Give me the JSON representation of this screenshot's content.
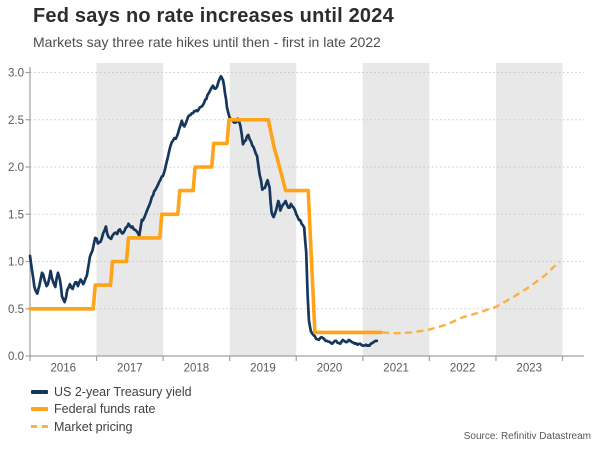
{
  "header": {
    "title": "Fed says no rate increases until 2024",
    "subtitle": "Markets say three rate hikes until then - first in late 2022"
  },
  "source": "Source: Refinitiv Datastream",
  "colors": {
    "treasury_navy": "#16365C",
    "fed_funds_orange": "#FFA319",
    "market_pricing_orange": "#FBB040",
    "year_band_gray": "#E8E8E8",
    "gridline_gray": "#C9C9C9",
    "axis_gray": "#A0A0A0",
    "tick_label_gray": "#595959"
  },
  "legend": [
    {
      "label": "US 2-year Treasury yield",
      "style": "solid",
      "color": "#16365C"
    },
    {
      "label": "Federal funds rate",
      "style": "solid",
      "color": "#FFA319"
    },
    {
      "label": "Market pricing",
      "style": "dashed",
      "color": "#FBB040"
    }
  ],
  "chart_data": {
    "type": "line",
    "title": "Fed says no rate increases until 2024",
    "subtitle": "Markets say three rate hikes until then - first in late 2022",
    "xlabel": "",
    "ylabel": "",
    "x_axis": {
      "range": [
        2016,
        2024.32
      ],
      "year_labels": [
        "2016",
        "2017",
        "2018",
        "2019",
        "2020",
        "2021",
        "2022",
        "2023"
      ],
      "boundary_tick_years": [
        2016,
        2017,
        2018,
        2019,
        2020,
        2021,
        2022,
        2023,
        2024
      ]
    },
    "y_axis": {
      "range": [
        0.0,
        3.0
      ],
      "ticks": [
        0.0,
        0.5,
        1.0,
        1.5,
        2.0,
        2.5,
        3.0
      ],
      "grid": "dotted"
    },
    "shaded_year_bands": [
      2017,
      2019,
      2021,
      2023
    ],
    "legend_position": "bottom-left",
    "series": [
      {
        "name": "US 2-year Treasury yield",
        "style": "solid",
        "color": "#16365C",
        "width": 2.7,
        "daily_noise": true,
        "points": [
          [
            2016.0,
            1.06
          ],
          [
            2016.02,
            0.96
          ],
          [
            2016.05,
            0.82
          ],
          [
            2016.08,
            0.7
          ],
          [
            2016.11,
            0.66
          ],
          [
            2016.14,
            0.74
          ],
          [
            2016.18,
            0.88
          ],
          [
            2016.22,
            0.8
          ],
          [
            2016.25,
            0.74
          ],
          [
            2016.28,
            0.79
          ],
          [
            2016.31,
            0.9
          ],
          [
            2016.35,
            0.78
          ],
          [
            2016.38,
            0.73
          ],
          [
            2016.42,
            0.88
          ],
          [
            2016.45,
            0.8
          ],
          [
            2016.48,
            0.63
          ],
          [
            2016.52,
            0.57
          ],
          [
            2016.56,
            0.7
          ],
          [
            2016.6,
            0.76
          ],
          [
            2016.64,
            0.71
          ],
          [
            2016.68,
            0.78
          ],
          [
            2016.72,
            0.74
          ],
          [
            2016.76,
            0.81
          ],
          [
            2016.8,
            0.76
          ],
          [
            2016.84,
            0.83
          ],
          [
            2016.87,
            0.92
          ],
          [
            2016.9,
            1.05
          ],
          [
            2016.94,
            1.12
          ],
          [
            2016.98,
            1.25
          ],
          [
            2017.02,
            1.19
          ],
          [
            2017.06,
            1.21
          ],
          [
            2017.1,
            1.3
          ],
          [
            2017.14,
            1.37
          ],
          [
            2017.18,
            1.26
          ],
          [
            2017.22,
            1.24
          ],
          [
            2017.27,
            1.3
          ],
          [
            2017.31,
            1.29
          ],
          [
            2017.35,
            1.34
          ],
          [
            2017.4,
            1.3
          ],
          [
            2017.44,
            1.36
          ],
          [
            2017.48,
            1.4
          ],
          [
            2017.52,
            1.36
          ],
          [
            2017.56,
            1.34
          ],
          [
            2017.6,
            1.32
          ],
          [
            2017.64,
            1.27
          ],
          [
            2017.68,
            1.44
          ],
          [
            2017.73,
            1.49
          ],
          [
            2017.77,
            1.56
          ],
          [
            2017.81,
            1.63
          ],
          [
            2017.85,
            1.7
          ],
          [
            2017.9,
            1.78
          ],
          [
            2017.94,
            1.84
          ],
          [
            2017.98,
            1.9
          ],
          [
            2018.03,
            1.98
          ],
          [
            2018.07,
            2.1
          ],
          [
            2018.11,
            2.22
          ],
          [
            2018.15,
            2.28
          ],
          [
            2018.19,
            2.3
          ],
          [
            2018.24,
            2.4
          ],
          [
            2018.28,
            2.49
          ],
          [
            2018.32,
            2.43
          ],
          [
            2018.36,
            2.5
          ],
          [
            2018.41,
            2.55
          ],
          [
            2018.45,
            2.57
          ],
          [
            2018.5,
            2.6
          ],
          [
            2018.55,
            2.63
          ],
          [
            2018.6,
            2.66
          ],
          [
            2018.65,
            2.72
          ],
          [
            2018.7,
            2.8
          ],
          [
            2018.75,
            2.86
          ],
          [
            2018.79,
            2.83
          ],
          [
            2018.83,
            2.9
          ],
          [
            2018.87,
            2.96
          ],
          [
            2018.9,
            2.92
          ],
          [
            2018.93,
            2.78
          ],
          [
            2018.96,
            2.63
          ],
          [
            2019.0,
            2.52
          ],
          [
            2019.04,
            2.5
          ],
          [
            2019.08,
            2.47
          ],
          [
            2019.12,
            2.51
          ],
          [
            2019.16,
            2.44
          ],
          [
            2019.2,
            2.24
          ],
          [
            2019.24,
            2.28
          ],
          [
            2019.28,
            2.34
          ],
          [
            2019.32,
            2.27
          ],
          [
            2019.36,
            2.21
          ],
          [
            2019.41,
            2.12
          ],
          [
            2019.45,
            1.92
          ],
          [
            2019.49,
            1.76
          ],
          [
            2019.53,
            1.78
          ],
          [
            2019.57,
            1.86
          ],
          [
            2019.6,
            1.78
          ],
          [
            2019.63,
            1.52
          ],
          [
            2019.66,
            1.47
          ],
          [
            2019.7,
            1.55
          ],
          [
            2019.73,
            1.64
          ],
          [
            2019.76,
            1.54
          ],
          [
            2019.8,
            1.6
          ],
          [
            2019.84,
            1.64
          ],
          [
            2019.88,
            1.57
          ],
          [
            2019.92,
            1.61
          ],
          [
            2019.96,
            1.57
          ],
          [
            2020.0,
            1.5
          ],
          [
            2020.04,
            1.44
          ],
          [
            2020.08,
            1.4
          ],
          [
            2020.12,
            1.36
          ],
          [
            2020.15,
            1.1
          ],
          [
            2020.17,
            0.65
          ],
          [
            2020.19,
            0.38
          ],
          [
            2020.22,
            0.26
          ],
          [
            2020.26,
            0.22
          ],
          [
            2020.3,
            0.18
          ],
          [
            2020.34,
            0.17
          ],
          [
            2020.38,
            0.2
          ],
          [
            2020.42,
            0.18
          ],
          [
            2020.46,
            0.16
          ],
          [
            2020.5,
            0.15
          ],
          [
            2020.54,
            0.13
          ],
          [
            2020.58,
            0.16
          ],
          [
            2020.62,
            0.14
          ],
          [
            2020.66,
            0.13
          ],
          [
            2020.7,
            0.17
          ],
          [
            2020.74,
            0.15
          ],
          [
            2020.79,
            0.17
          ],
          [
            2020.83,
            0.15
          ],
          [
            2020.88,
            0.13
          ],
          [
            2020.92,
            0.12
          ],
          [
            2020.96,
            0.13
          ],
          [
            2021.0,
            0.11
          ],
          [
            2021.05,
            0.12
          ],
          [
            2021.1,
            0.11
          ],
          [
            2021.15,
            0.14
          ],
          [
            2021.21,
            0.16
          ]
        ]
      },
      {
        "name": "Federal funds rate",
        "style": "solid",
        "color": "#FFA319",
        "width": 3.6,
        "daily_noise": false,
        "points": [
          [
            2016.0,
            0.5
          ],
          [
            2016.95,
            0.5
          ],
          [
            2016.98,
            0.75
          ],
          [
            2017.21,
            0.75
          ],
          [
            2017.24,
            1.0
          ],
          [
            2017.45,
            1.0
          ],
          [
            2017.48,
            1.25
          ],
          [
            2017.95,
            1.25
          ],
          [
            2017.98,
            1.5
          ],
          [
            2018.22,
            1.5
          ],
          [
            2018.25,
            1.75
          ],
          [
            2018.45,
            1.75
          ],
          [
            2018.48,
            2.0
          ],
          [
            2018.73,
            2.0
          ],
          [
            2018.76,
            2.25
          ],
          [
            2018.96,
            2.25
          ],
          [
            2018.99,
            2.5
          ],
          [
            2019.58,
            2.5
          ],
          [
            2019.67,
            2.2
          ],
          [
            2019.75,
            2.0
          ],
          [
            2019.84,
            1.75
          ],
          [
            2020.18,
            1.75
          ],
          [
            2020.28,
            0.25
          ],
          [
            2021.27,
            0.25
          ]
        ]
      },
      {
        "name": "Market pricing",
        "style": "dashed",
        "color": "#FBB040",
        "width": 2.4,
        "daily_noise": false,
        "points": [
          [
            2021.29,
            0.25
          ],
          [
            2021.5,
            0.24
          ],
          [
            2021.75,
            0.25
          ],
          [
            2022.0,
            0.28
          ],
          [
            2022.25,
            0.33
          ],
          [
            2022.5,
            0.41
          ],
          [
            2022.75,
            0.46
          ],
          [
            2023.0,
            0.52
          ],
          [
            2023.25,
            0.62
          ],
          [
            2023.5,
            0.73
          ],
          [
            2023.75,
            0.86
          ],
          [
            2023.95,
            1.0
          ]
        ]
      }
    ]
  }
}
